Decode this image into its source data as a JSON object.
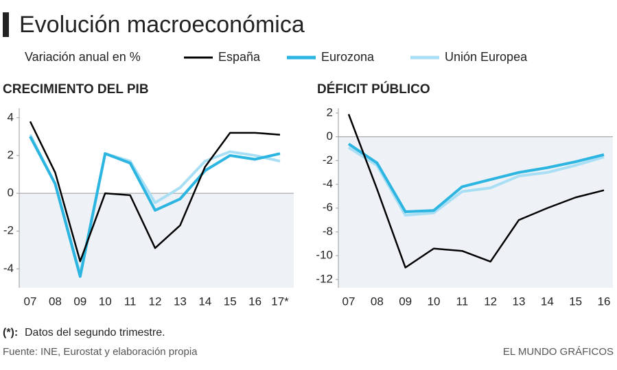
{
  "title": "Evolución macroeconómica",
  "legend_label": "Variación anual en %",
  "chart_data": [
    {
      "type": "line",
      "title": "CRECIMIENTO DEL PIB",
      "categories": [
        "07",
        "08",
        "09",
        "10",
        "11",
        "12",
        "13",
        "14",
        "15",
        "16",
        "17*"
      ],
      "ylim": [
        -5,
        4.5
      ],
      "yticks": [
        4,
        2,
        0,
        -2,
        -4
      ],
      "series": [
        {
          "name": "España",
          "color": "#000000",
          "values": [
            3.8,
            1.1,
            -3.6,
            0.0,
            -0.1,
            -2.9,
            -1.7,
            1.4,
            3.2,
            3.2,
            3.1
          ]
        },
        {
          "name": "Eurozona",
          "color": "#2bb5e0",
          "values": [
            3.0,
            0.5,
            -4.4,
            2.1,
            1.6,
            -0.9,
            -0.3,
            1.2,
            2.0,
            1.8,
            2.1
          ]
        },
        {
          "name": "Unión Europea",
          "color": "#a8dff5",
          "values": [
            3.1,
            0.5,
            -4.3,
            2.1,
            1.7,
            -0.5,
            0.3,
            1.7,
            2.2,
            2.0,
            1.7
          ]
        }
      ]
    },
    {
      "type": "line",
      "title": "DÉFICIT PÚBLICO",
      "categories": [
        "07",
        "08",
        "09",
        "10",
        "11",
        "12",
        "13",
        "14",
        "15",
        "16"
      ],
      "ylim": [
        -12.7,
        2.4
      ],
      "yticks": [
        2,
        0,
        -2,
        -4,
        -6,
        -8,
        -10,
        -12
      ],
      "series": [
        {
          "color": "#000000",
          "values": [
            1.9,
            -4.4,
            -11.0,
            -9.4,
            -9.6,
            -10.5,
            -7.0,
            -6.0,
            -5.1,
            -4.5
          ]
        },
        {
          "color": "#2bb5e0",
          "values": [
            -0.6,
            -2.2,
            -6.3,
            -6.2,
            -4.2,
            -3.6,
            -3.0,
            -2.6,
            -2.1,
            -1.5
          ]
        },
        {
          "color": "#a8dff5",
          "values": [
            -0.9,
            -2.4,
            -6.6,
            -6.4,
            -4.6,
            -4.3,
            -3.3,
            -3.0,
            -2.4,
            -1.7
          ]
        }
      ]
    }
  ],
  "footnote": {
    "marker": "(*):",
    "text": "Datos del segundo trimestre."
  },
  "source": "Fuente: INE, Eurostat y elaboración propia",
  "credit": "EL MUNDO GRÁFICOS"
}
